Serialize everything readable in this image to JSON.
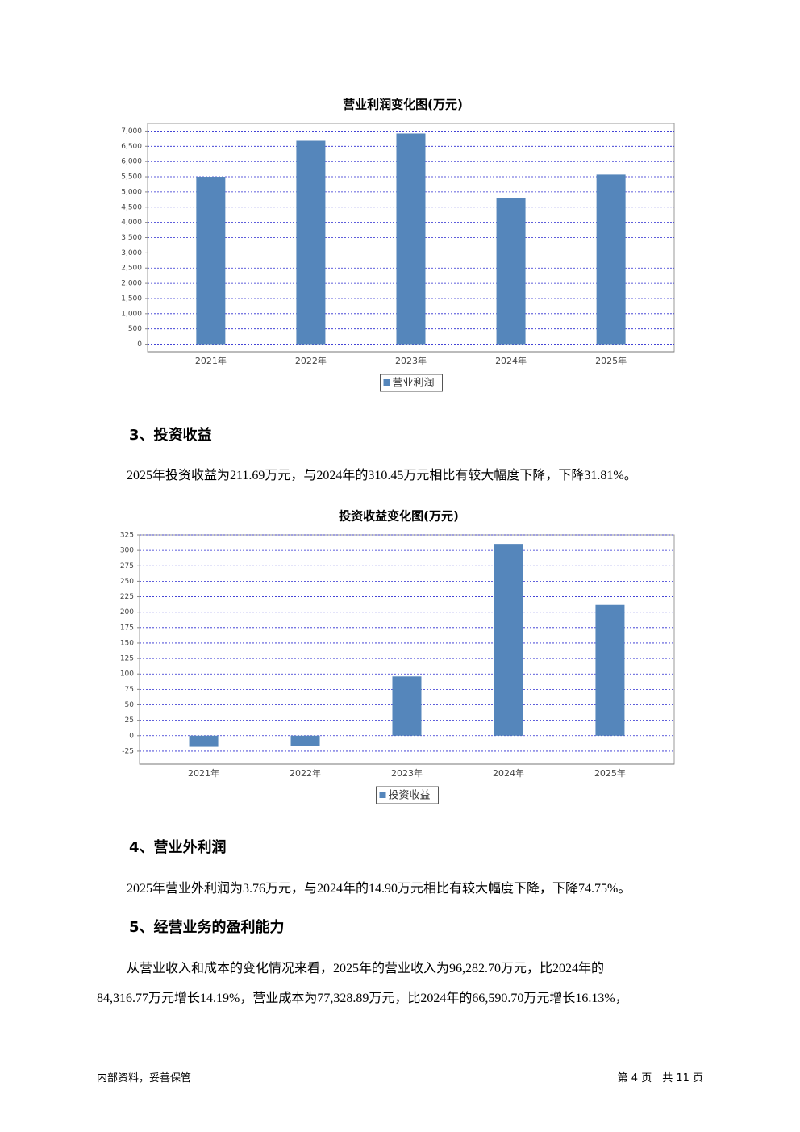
{
  "chart_data": [
    {
      "type": "bar",
      "title": "营业利润变化图(万元)",
      "categories": [
        "2021年",
        "2022年",
        "2023年",
        "2024年",
        "2025年"
      ],
      "series": [
        {
          "name": "营业利润",
          "color": "#5586bb",
          "values": [
            5500,
            6680,
            6920,
            4800,
            5570
          ]
        }
      ],
      "ylim": [
        -250,
        7250
      ],
      "yticks": [
        0,
        500,
        {
          "value": 1000,
          "label": "1,000"
        },
        {
          "value": 1500,
          "label": "1,500"
        },
        {
          "value": 2000,
          "label": "2,000"
        },
        {
          "value": 2500,
          "label": "2,500"
        },
        {
          "value": 3000,
          "label": "3,000"
        },
        {
          "value": 3500,
          "label": "3,500"
        },
        {
          "value": 4000,
          "label": "4,000"
        },
        {
          "value": 4500,
          "label": "4,500"
        },
        {
          "value": 5000,
          "label": "5,000"
        },
        {
          "value": 5500,
          "label": "5,500"
        },
        {
          "value": 6000,
          "label": "6,000"
        },
        {
          "value": 6500,
          "label": "6,500"
        },
        {
          "value": 7000,
          "label": "7,000"
        }
      ],
      "grid": true,
      "legend": "bottom"
    },
    {
      "type": "bar",
      "title": "投资收益变化图(万元)",
      "categories": [
        "2021年",
        "2022年",
        "2023年",
        "2024年",
        "2025年"
      ],
      "series": [
        {
          "name": "投资收益",
          "color": "#5586bb",
          "values": [
            -18,
            -17,
            96,
            310.45,
            211.69
          ]
        }
      ],
      "ylim": [
        -46,
        325
      ],
      "yticks": [
        -25,
        0,
        25,
        50,
        75,
        100,
        125,
        150,
        175,
        200,
        225,
        250,
        275,
        300,
        325
      ],
      "grid": true,
      "legend": "bottom"
    }
  ],
  "sections": [
    {
      "heading": "3、投资收益",
      "paragraphs": [
        "2025年投资收益为211.69万元，与2024年的310.45万元相比有较大幅度下降，下降31.81%。"
      ]
    },
    {
      "heading": "4、营业外利润",
      "paragraphs": [
        "2025年营业外利润为3.76万元，与2024年的14.90万元相比有较大幅度下降，下降74.75%。"
      ]
    },
    {
      "heading": "5、经营业务的盈利能力",
      "paragraphs": [
        "从营业收入和成本的变化情况来看，2025年的营业收入为96,282.70万元，比2024年的",
        "84,316.77万元增长14.19%，营业成本为77,328.89万元，比2024年的66,590.70万元增长16.13%，"
      ]
    }
  ],
  "footer": {
    "left": "内部资料，妥善保管",
    "right": "第 4 页　共 11 页"
  }
}
